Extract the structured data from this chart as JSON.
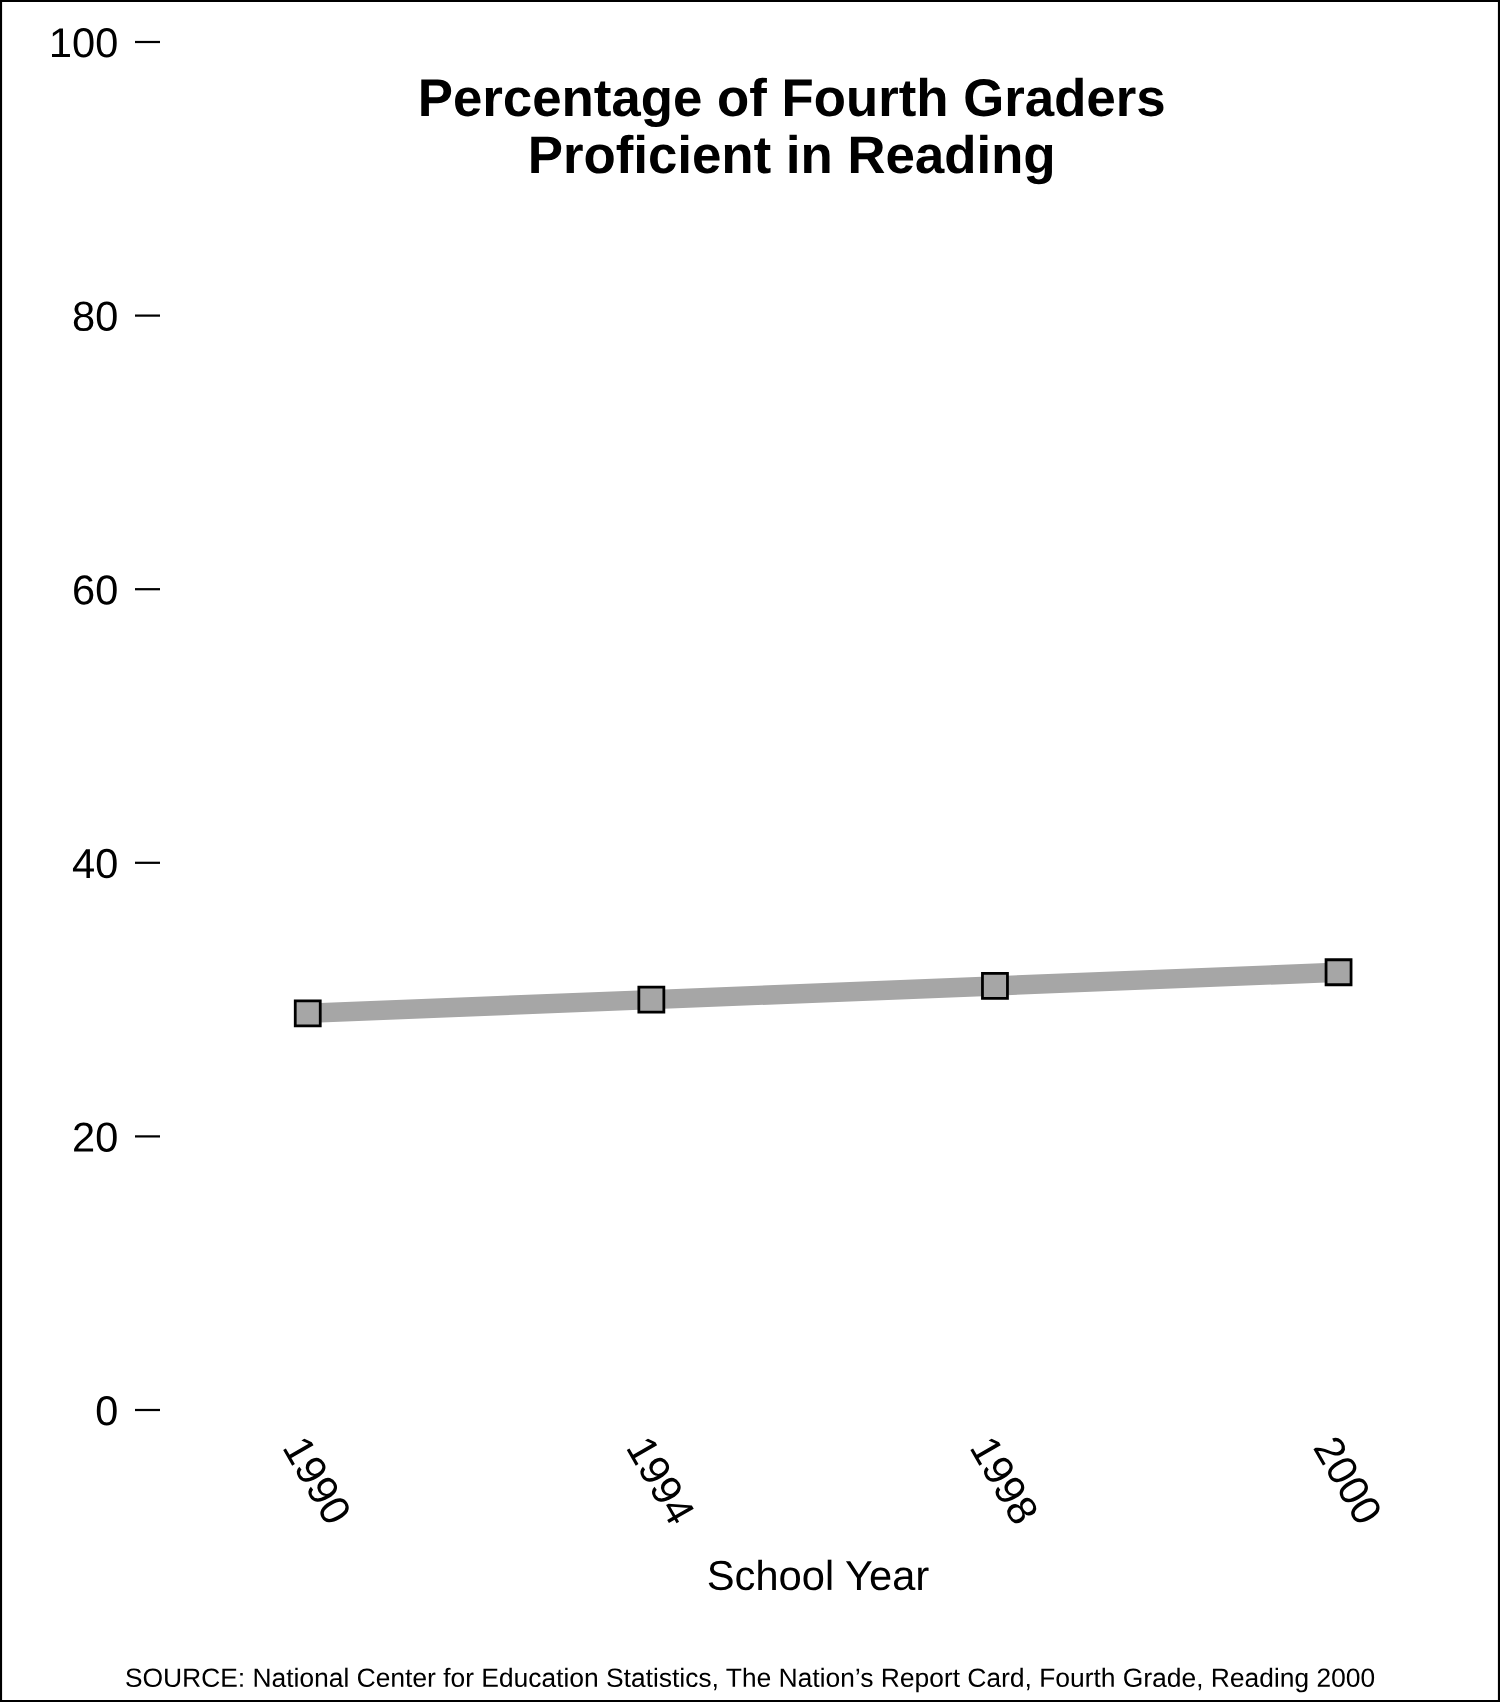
{
  "chart_data": {
    "type": "line",
    "title": "Percentage of Fourth Graders\nProficient in Reading",
    "xlabel": "School Year",
    "categories": [
      "1990",
      "1994",
      "1998",
      "2000"
    ],
    "series": [
      {
        "color": "#a6a6a6",
        "values": [
          29,
          30,
          31,
          32
        ]
      }
    ],
    "marker": "square",
    "line_style": "solid",
    "ylim": [
      0,
      100
    ],
    "yticks": [
      0,
      20,
      40,
      60,
      80,
      100
    ],
    "grid": false,
    "annotations": [
      "SOURCE: National Center for Education Statistics, The Nation’s Report Card, Fourth Grade, Reading 2000"
    ]
  }
}
